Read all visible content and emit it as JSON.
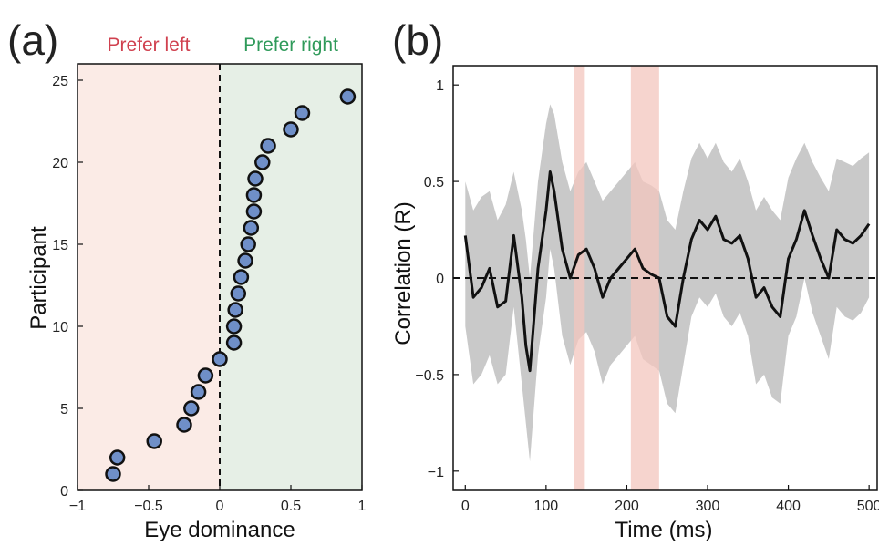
{
  "chart_data": [
    {
      "panel": "(a)",
      "type": "scatter",
      "xlabel": "Eye dominance",
      "ylabel": "Participant",
      "xlim": [
        -1.0,
        1.0
      ],
      "ylim": [
        0,
        26
      ],
      "xticks": [
        "−1",
        "−0.5",
        "0",
        "0.5",
        "1"
      ],
      "xtick_values": [
        -1,
        -0.5,
        0,
        0.5,
        1
      ],
      "yticks": [
        "0",
        "5",
        "10",
        "15",
        "20",
        "25"
      ],
      "ytick_values": [
        0,
        5,
        10,
        15,
        20,
        25
      ],
      "regions": [
        {
          "label": "Prefer left",
          "from": -1.0,
          "to": 0,
          "fill": "#fbebe6",
          "text_color": "#d0414f"
        },
        {
          "label": "Prefer right",
          "from": 0,
          "to": 1.0,
          "fill": "#e6efe6",
          "text_color": "#2f9a5a"
        }
      ],
      "reference_line_x": 0,
      "marker_color": "#6f8fc8",
      "points": [
        {
          "x": -0.75,
          "y": 1
        },
        {
          "x": -0.72,
          "y": 2
        },
        {
          "x": -0.46,
          "y": 3
        },
        {
          "x": -0.25,
          "y": 4
        },
        {
          "x": -0.2,
          "y": 5
        },
        {
          "x": -0.15,
          "y": 6
        },
        {
          "x": -0.1,
          "y": 7
        },
        {
          "x": 0.0,
          "y": 8
        },
        {
          "x": 0.1,
          "y": 9
        },
        {
          "x": 0.1,
          "y": 10
        },
        {
          "x": 0.11,
          "y": 11
        },
        {
          "x": 0.13,
          "y": 12
        },
        {
          "x": 0.15,
          "y": 13
        },
        {
          "x": 0.18,
          "y": 14
        },
        {
          "x": 0.2,
          "y": 15
        },
        {
          "x": 0.22,
          "y": 16
        },
        {
          "x": 0.24,
          "y": 17
        },
        {
          "x": 0.24,
          "y": 18
        },
        {
          "x": 0.25,
          "y": 19
        },
        {
          "x": 0.3,
          "y": 20
        },
        {
          "x": 0.34,
          "y": 21
        },
        {
          "x": 0.5,
          "y": 22
        },
        {
          "x": 0.58,
          "y": 23
        },
        {
          "x": 0.9,
          "y": 24
        }
      ]
    },
    {
      "panel": "(b)",
      "type": "line",
      "xlabel": "Time (ms)",
      "ylabel": "Correlation (R)",
      "xlim": [
        -15,
        510
      ],
      "ylim": [
        -1.1,
        1.1
      ],
      "xticks": [
        "0",
        "100",
        "200",
        "300",
        "400",
        "500"
      ],
      "xtick_values": [
        0,
        100,
        200,
        300,
        400,
        500
      ],
      "yticks": [
        "−1",
        "−0.5",
        "0",
        "0.5",
        "1"
      ],
      "ytick_values": [
        -1,
        -0.5,
        0,
        0.5,
        1
      ],
      "reference_line_y": 0,
      "line_color": "#111111",
      "band_color": "#c9c9c9",
      "highlight_color": "#f3c6bd",
      "highlights": [
        [
          135,
          148
        ],
        [
          205,
          240
        ]
      ],
      "x": [
        0,
        10,
        20,
        30,
        40,
        50,
        60,
        70,
        75,
        80,
        90,
        100,
        105,
        110,
        120,
        130,
        140,
        150,
        160,
        170,
        180,
        190,
        200,
        210,
        220,
        230,
        240,
        250,
        260,
        270,
        280,
        290,
        300,
        310,
        320,
        330,
        340,
        350,
        360,
        370,
        380,
        390,
        400,
        410,
        420,
        430,
        440,
        450,
        460,
        470,
        480,
        490,
        500
      ],
      "values": [
        0.22,
        -0.1,
        -0.05,
        0.05,
        -0.15,
        -0.12,
        0.22,
        -0.1,
        -0.35,
        -0.48,
        0.05,
        0.35,
        0.55,
        0.45,
        0.15,
        0.0,
        0.12,
        0.15,
        0.05,
        -0.1,
        0.0,
        0.05,
        0.1,
        0.15,
        0.05,
        0.02,
        0.0,
        -0.2,
        -0.25,
        0.0,
        0.2,
        0.3,
        0.25,
        0.32,
        0.2,
        0.18,
        0.22,
        0.1,
        -0.1,
        -0.05,
        -0.15,
        -0.2,
        0.1,
        0.2,
        0.35,
        0.22,
        0.1,
        0.0,
        0.25,
        0.2,
        0.18,
        0.22,
        0.28
      ],
      "band_upper": [
        0.5,
        0.35,
        0.42,
        0.45,
        0.3,
        0.38,
        0.55,
        0.35,
        0.2,
        0.0,
        0.5,
        0.8,
        0.9,
        0.85,
        0.6,
        0.45,
        0.55,
        0.6,
        0.5,
        0.4,
        0.45,
        0.5,
        0.55,
        0.6,
        0.5,
        0.48,
        0.45,
        0.3,
        0.25,
        0.45,
        0.62,
        0.7,
        0.62,
        0.7,
        0.6,
        0.55,
        0.62,
        0.5,
        0.35,
        0.42,
        0.35,
        0.3,
        0.52,
        0.62,
        0.7,
        0.6,
        0.52,
        0.45,
        0.62,
        0.6,
        0.58,
        0.62,
        0.65
      ],
      "band_lower": [
        -0.25,
        -0.55,
        -0.5,
        -0.4,
        -0.55,
        -0.5,
        -0.15,
        -0.55,
        -0.75,
        -0.95,
        -0.4,
        -0.1,
        0.15,
        0.05,
        -0.3,
        -0.45,
        -0.32,
        -0.28,
        -0.38,
        -0.55,
        -0.45,
        -0.4,
        -0.35,
        -0.3,
        -0.42,
        -0.45,
        -0.48,
        -0.65,
        -0.7,
        -0.45,
        -0.2,
        -0.1,
        -0.15,
        -0.08,
        -0.2,
        -0.25,
        -0.18,
        -0.3,
        -0.55,
        -0.5,
        -0.62,
        -0.65,
        -0.3,
        -0.2,
        0.0,
        -0.18,
        -0.3,
        -0.42,
        -0.15,
        -0.2,
        -0.22,
        -0.18,
        -0.1
      ]
    }
  ]
}
